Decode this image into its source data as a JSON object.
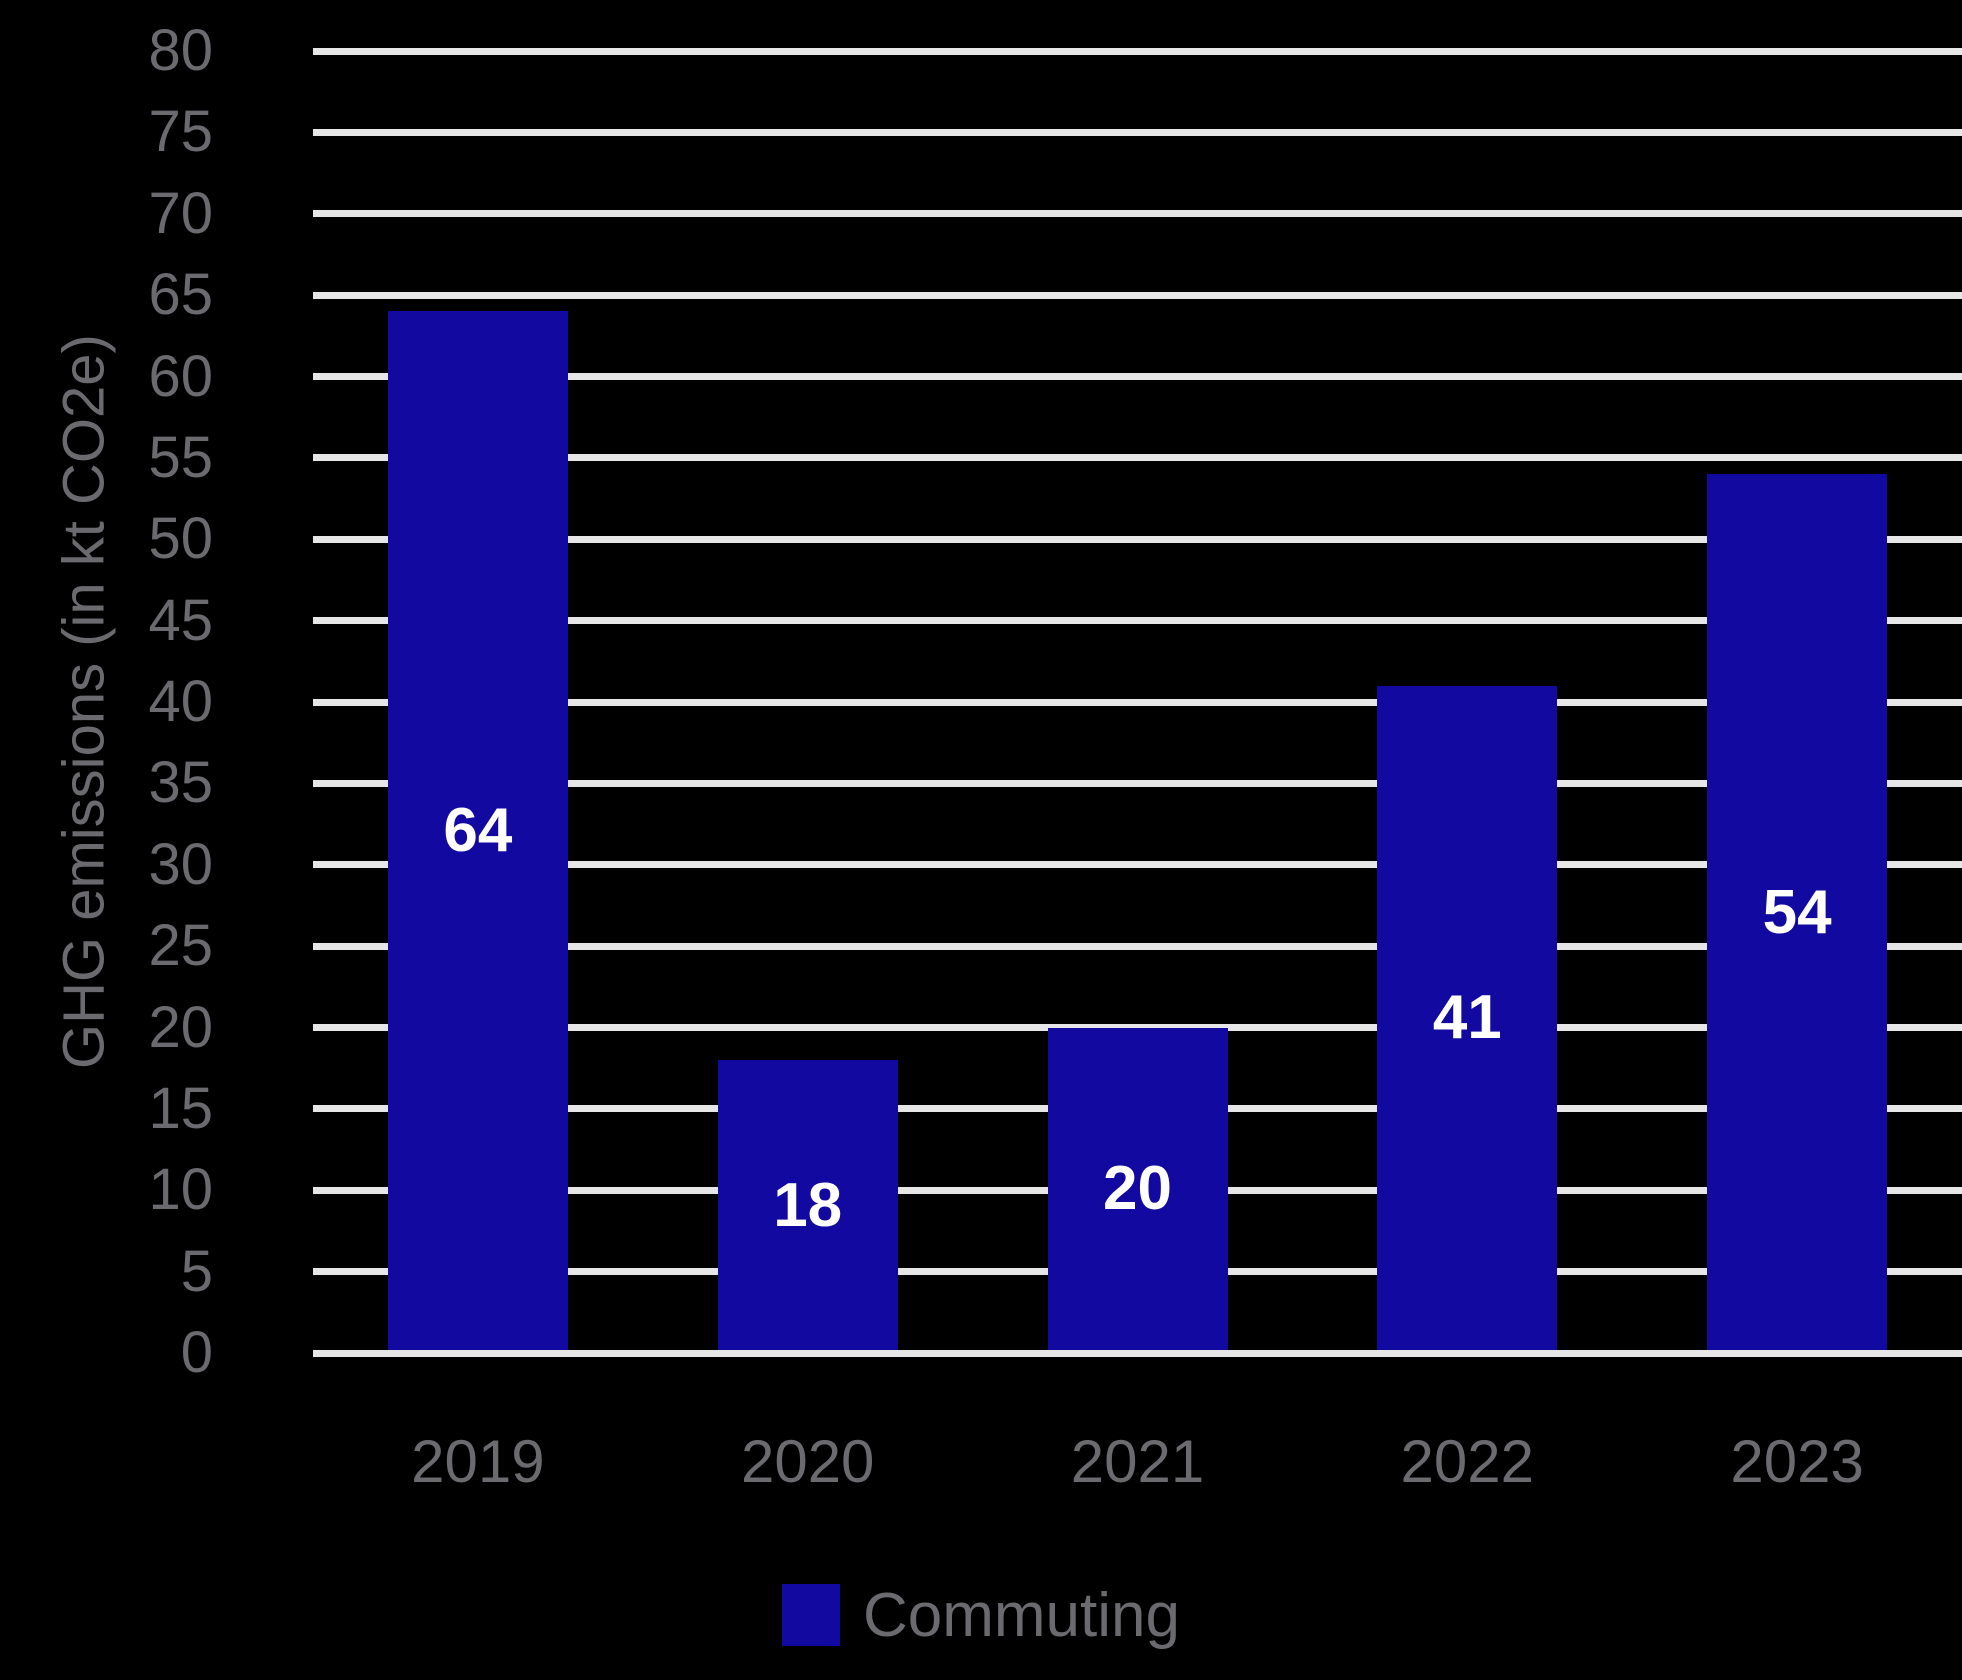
{
  "chart_data": {
    "type": "bar",
    "title": "",
    "categories": [
      "2019",
      "2020",
      "2021",
      "2022",
      "2023"
    ],
    "series": [
      {
        "name": "Commuting",
        "values": [
          64,
          18,
          20,
          41,
          54
        ]
      }
    ],
    "show_values": true,
    "value_labels": [
      64,
      18,
      20,
      41,
      54
    ],
    "xlabel": "",
    "ylabel": "GHG emissions (in kt CO2e)",
    "ylim": [
      0,
      80
    ],
    "ytick_step": 5,
    "yticks": [
      0,
      5,
      10,
      15,
      20,
      25,
      30,
      35,
      40,
      45,
      50,
      55,
      60,
      65,
      70,
      75,
      80
    ],
    "grid": "horizontal",
    "legend_position": "bottom-center"
  },
  "colors": {
    "background": "#000000",
    "bar": "#1209A0",
    "gridline": "#E6E6E6",
    "axis_text": "#6A6A6F",
    "value_label": "#FFFFFF"
  }
}
